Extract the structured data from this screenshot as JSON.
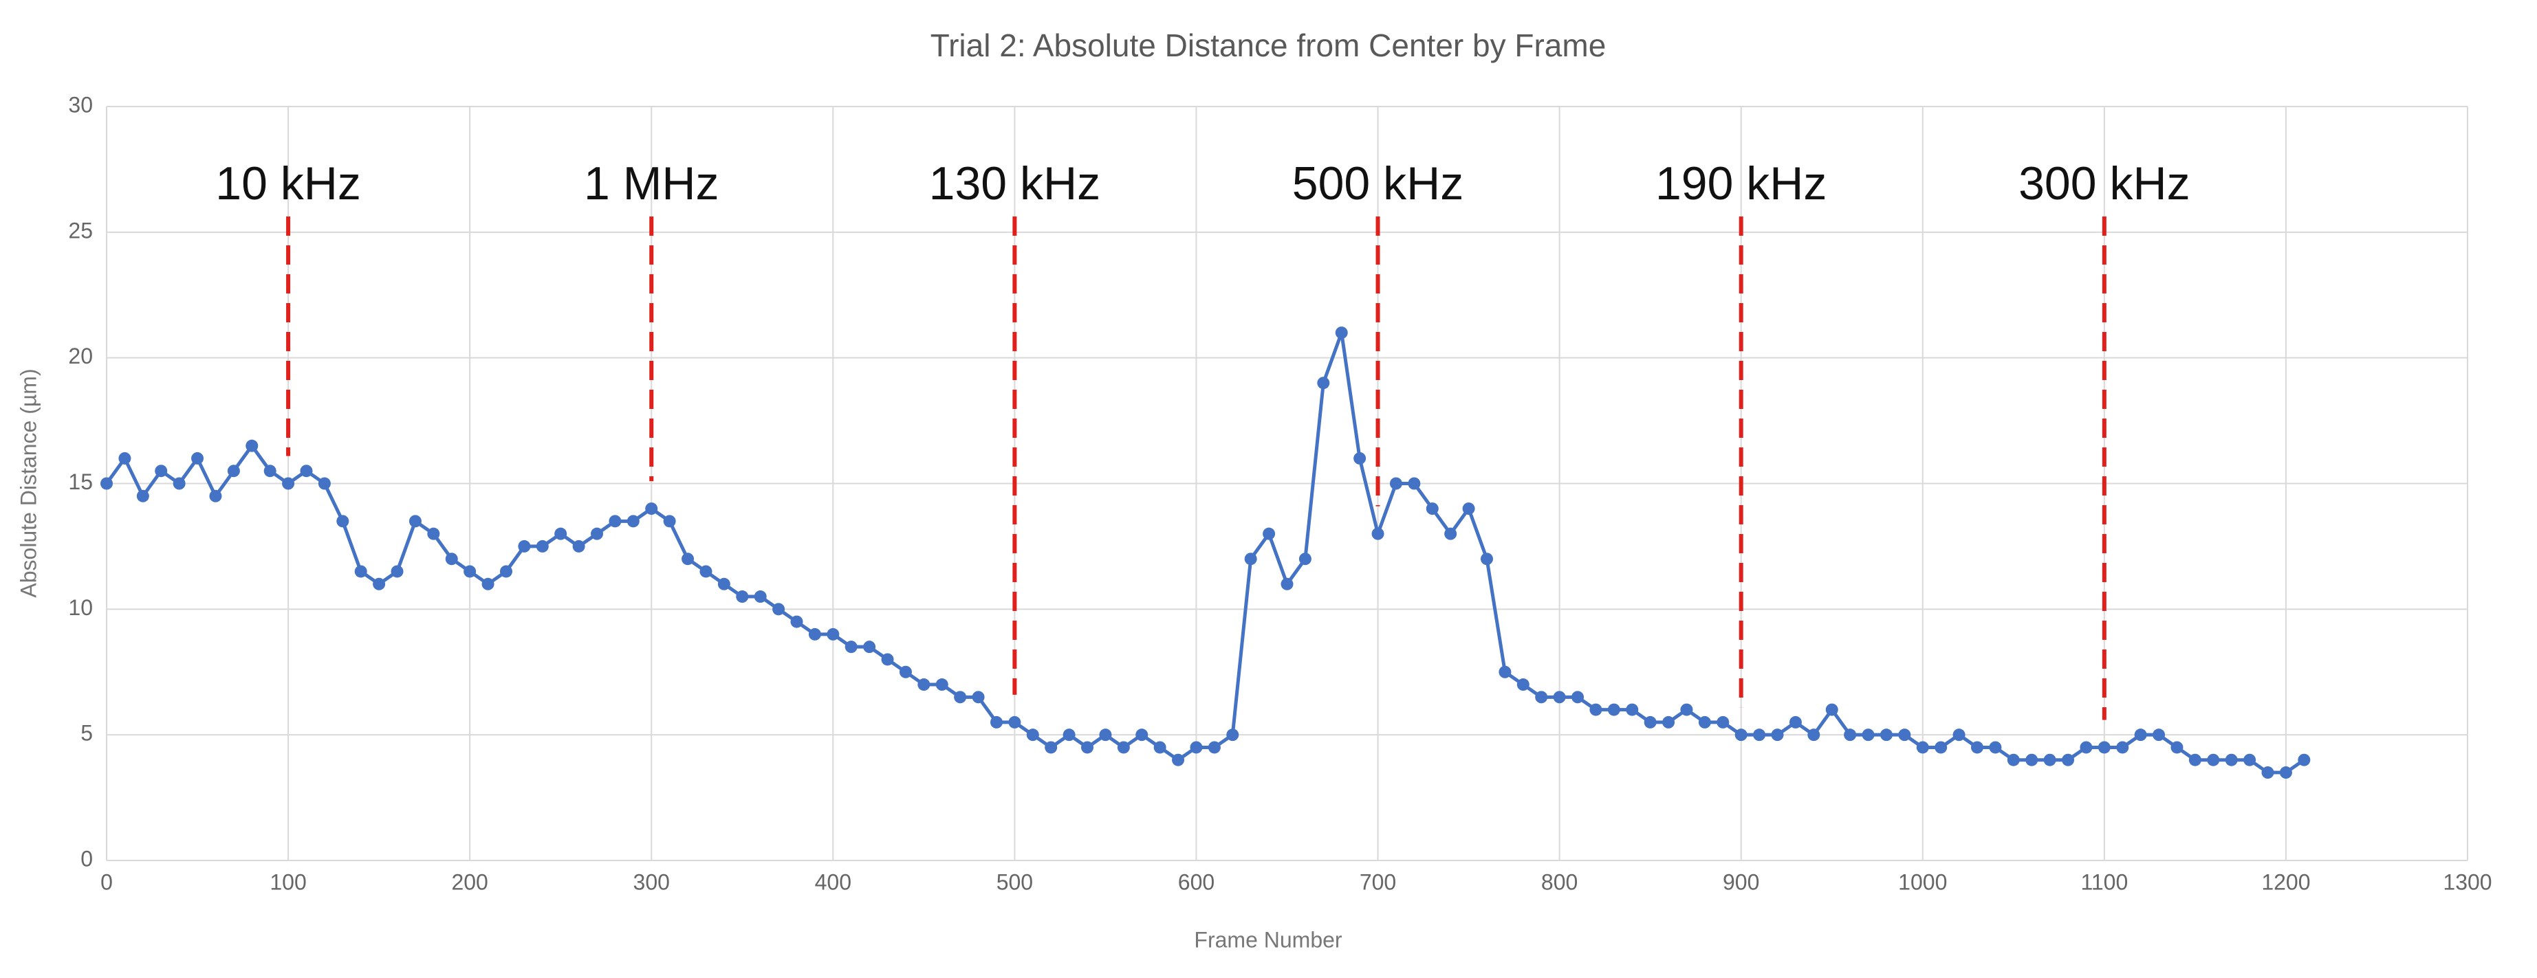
{
  "chart_data": {
    "type": "line",
    "title": "Trial 2: Absolute Distance from Center by Frame",
    "xlabel": "Frame Number",
    "ylabel": "Absolute Distance (µm)",
    "x": [
      0,
      10,
      20,
      30,
      40,
      50,
      60,
      70,
      80,
      90,
      100,
      110,
      120,
      130,
      140,
      150,
      160,
      170,
      180,
      190,
      200,
      210,
      220,
      230,
      240,
      250,
      260,
      270,
      280,
      290,
      300,
      310,
      320,
      330,
      340,
      350,
      360,
      370,
      380,
      390,
      400,
      410,
      420,
      430,
      440,
      450,
      460,
      470,
      480,
      490,
      500,
      510,
      520,
      530,
      540,
      550,
      560,
      570,
      580,
      590,
      600,
      610,
      620,
      630,
      640,
      650,
      660,
      670,
      680,
      690,
      700,
      710,
      720,
      730,
      740,
      750,
      760,
      770,
      780,
      790,
      800,
      810,
      820,
      830,
      840,
      850,
      860,
      870,
      880,
      890,
      900,
      910,
      920,
      930,
      940,
      950,
      960,
      970,
      980,
      990,
      1000,
      1010,
      1020,
      1030,
      1040,
      1050,
      1060,
      1070,
      1080,
      1090,
      1100,
      1110,
      1120,
      1130,
      1140,
      1150,
      1160,
      1170,
      1180,
      1190,
      1200,
      1210
    ],
    "series": [
      {
        "name": "Absolute Distance",
        "color": "#4472c4",
        "values": [
          15,
          16,
          14.5,
          15.5,
          15,
          16,
          14.5,
          15.5,
          16.5,
          15.5,
          15,
          15.5,
          15,
          13.5,
          11.5,
          11,
          11.5,
          13.5,
          13,
          12,
          11.5,
          11,
          11.5,
          12.5,
          12.5,
          13,
          12.5,
          13,
          13.5,
          13.5,
          14,
          13.5,
          12,
          11.5,
          11,
          10.5,
          10.5,
          10,
          9.5,
          9,
          9,
          8.5,
          8.5,
          8,
          7.5,
          7,
          7,
          6.5,
          6.5,
          5.5,
          5.5,
          5,
          4.5,
          5,
          4.5,
          5,
          4.5,
          5,
          4.5,
          4,
          4.5,
          4.5,
          5,
          12,
          13,
          11,
          12,
          19,
          21,
          16,
          13,
          15,
          15,
          14,
          13,
          14,
          12,
          7.5,
          7,
          6.5,
          6.5,
          6.5,
          6,
          6,
          6,
          5.5,
          5.5,
          6,
          5.5,
          5.5,
          5,
          5,
          5,
          5.5,
          5,
          6,
          5,
          5,
          5,
          5,
          4.5,
          4.5,
          5,
          4.5,
          4.5,
          4,
          4,
          4,
          4,
          4.5,
          4.5,
          4.5,
          5,
          5,
          4.5,
          4,
          4,
          4,
          4,
          3.5,
          3.5,
          4
        ]
      }
    ],
    "annotations": [
      {
        "x": 100,
        "label": "10 kHz"
      },
      {
        "x": 300,
        "label": "1 MHz"
      },
      {
        "x": 500,
        "label": "130 kHz"
      },
      {
        "x": 700,
        "label": "500 kHz"
      },
      {
        "x": 900,
        "label": "190 kHz"
      },
      {
        "x": 1100,
        "label": "300 kHz"
      }
    ],
    "annotation_color": "#e0201b",
    "xlim": [
      0,
      1300
    ],
    "xticks": [
      0,
      100,
      200,
      300,
      400,
      500,
      600,
      700,
      800,
      900,
      1000,
      1100,
      1200,
      1300
    ],
    "ylim": [
      0,
      30
    ],
    "yticks": [
      0,
      5,
      10,
      15,
      20,
      25,
      30
    ],
    "grid": true
  }
}
